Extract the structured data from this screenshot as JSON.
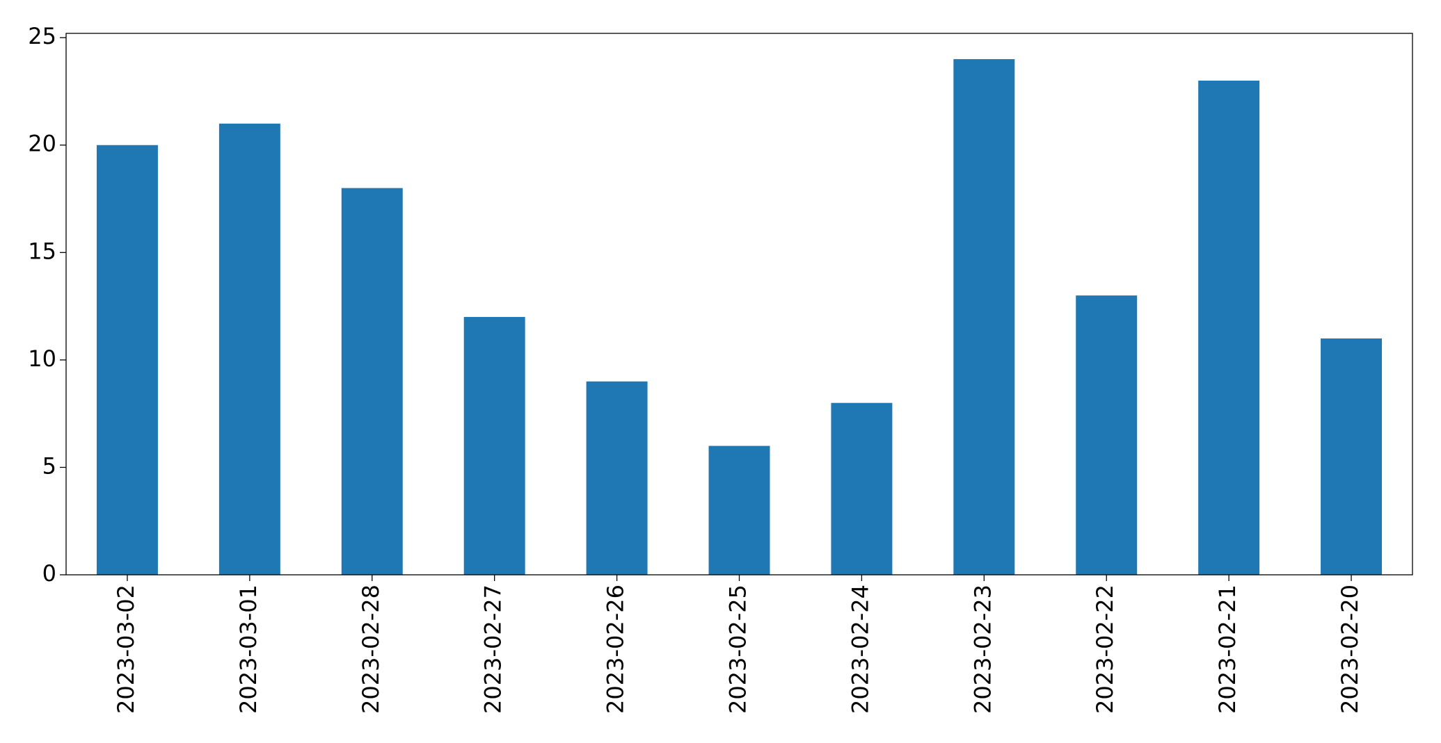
{
  "chart_data": {
    "type": "bar",
    "categories": [
      "2023-03-02",
      "2023-03-01",
      "2023-02-28",
      "2023-02-27",
      "2023-02-26",
      "2023-02-25",
      "2023-02-24",
      "2023-02-23",
      "2023-02-22",
      "2023-02-21",
      "2023-02-20"
    ],
    "values": [
      20,
      21,
      18,
      12,
      9,
      6,
      8,
      24,
      13,
      23,
      11
    ],
    "color": "#1f77b4",
    "ylim": [
      0,
      25.2
    ],
    "yticks": [
      0,
      5,
      10,
      15,
      20,
      25
    ],
    "grid": false
  }
}
